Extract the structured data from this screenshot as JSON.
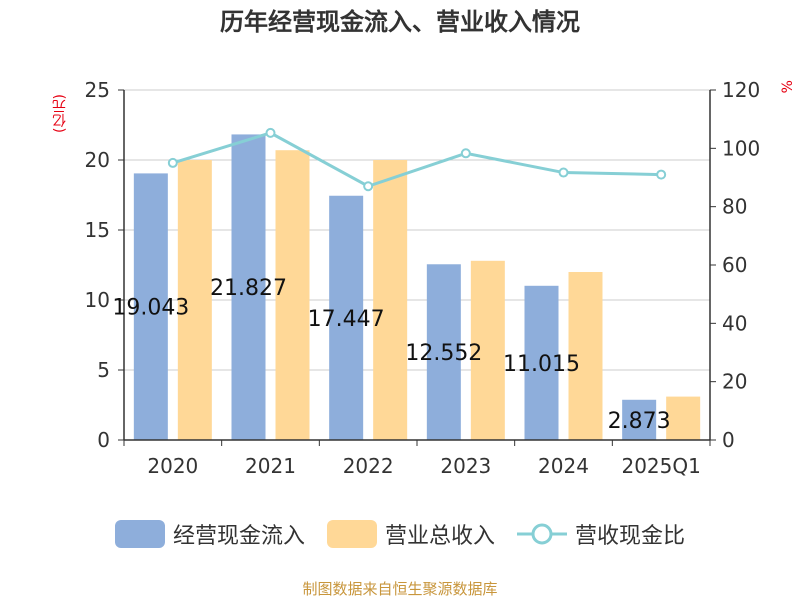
{
  "chart_data": {
    "type": "bar",
    "title": "历年经营现金流入、营业收入情况",
    "categories": [
      "2020",
      "2021",
      "2022",
      "2023",
      "2024",
      "2025Q1"
    ],
    "y_left": {
      "unit_label": "(亿元)",
      "ylim": [
        0,
        25
      ],
      "ticks": [
        0,
        5,
        10,
        15,
        20,
        25
      ]
    },
    "y_right": {
      "unit_label": "%",
      "ylim": [
        0,
        120
      ],
      "ticks": [
        0,
        20,
        40,
        60,
        80,
        100,
        120
      ]
    },
    "series": [
      {
        "name": "经营现金流入",
        "kind": "bar",
        "axis": "left",
        "color": "#8eaedb",
        "values": [
          19.043,
          21.827,
          17.447,
          12.552,
          11.015,
          2.873
        ],
        "data_labels": [
          "19.043",
          "21.827",
          "17.447",
          "12.552",
          "11.015",
          "2.873"
        ]
      },
      {
        "name": "营业总收入",
        "kind": "bar",
        "axis": "left",
        "color": "#ffd897",
        "values": [
          20.0,
          20.7,
          20.0,
          12.8,
          12.0,
          3.1
        ]
      },
      {
        "name": "营收现金比",
        "kind": "line",
        "axis": "right",
        "color": "#86cfd5",
        "values": [
          95.0,
          105.3,
          87.0,
          98.3,
          91.7,
          91.0
        ]
      }
    ],
    "grid": true,
    "legend_position": "bottom"
  },
  "source_text": "制图数据来自恒生聚源数据库"
}
